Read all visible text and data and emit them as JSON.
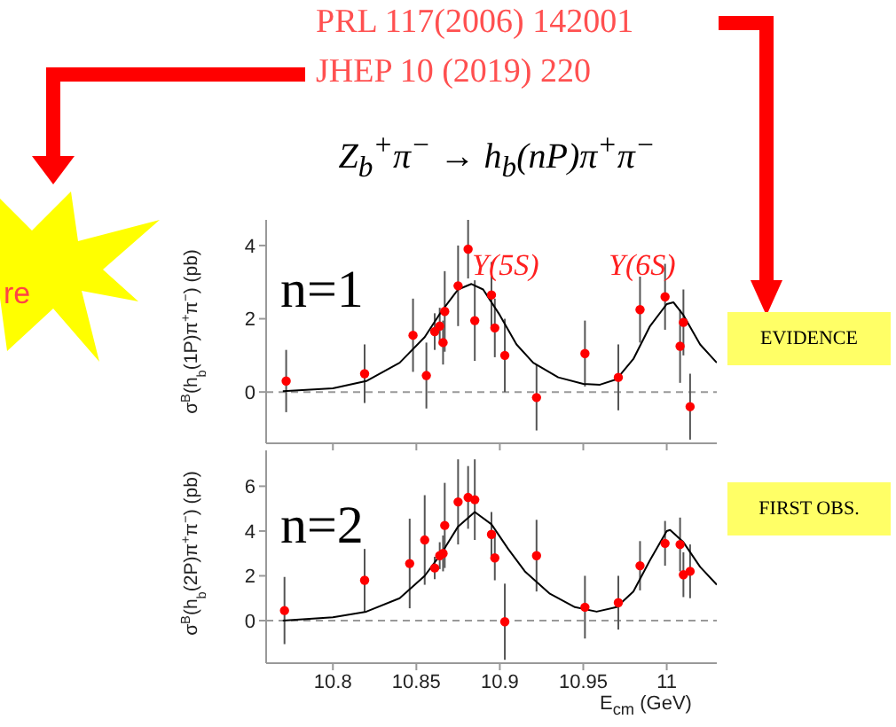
{
  "chart_data": [
    {
      "type": "scatter",
      "title": "Z$_{b}$$^{+}$π$^{−}$ → h$_{b}$(nP)π$^{+}$π$^{−}$",
      "ylabel": "σ$^{B}$(h$_{b}$(1P)π$^{+}$π$^{−}$) (pb)",
      "xlim": [
        10.76,
        11.03
      ],
      "ylim": [
        -1.4,
        4.7
      ],
      "xticks": [
        {
          "value": 10.8,
          "label": null
        },
        {
          "value": 10.85,
          "label": null
        },
        {
          "value": 10.9,
          "label": null
        },
        {
          "value": 10.95,
          "label": null
        },
        {
          "value": 11,
          "label": null
        }
      ],
      "yticks": [
        0,
        2,
        4
      ],
      "tick_labels": "y",
      "ref_lines": [
        {
          "axis": "y",
          "value": 0,
          "line_style": "dashed",
          "color": "#999999"
        }
      ],
      "annotations": [
        "n=1",
        "Υ(5S)",
        "Υ(6S)",
        "EVIDENCE",
        "PRL 117(2006) 142001",
        "JHEP 10 (2019) 220",
        "re"
      ],
      "series": [
        {
          "type": "scatter",
          "marker": "circle",
          "color": "#ff0000",
          "x": [
            10.772,
            10.819,
            10.848,
            10.856,
            10.861,
            10.864,
            10.866,
            10.867,
            10.875,
            10.881,
            10.885,
            10.895,
            10.897,
            10.903,
            10.922,
            10.951,
            10.971,
            10.984,
            10.999,
            11.008,
            11.01,
            11.014
          ],
          "values": [
            0.3,
            0.5,
            1.55,
            0.45,
            1.65,
            1.8,
            1.35,
            2.2,
            2.9,
            3.9,
            1.95,
            2.65,
            1.75,
            1.0,
            -0.15,
            1.05,
            0.4,
            2.25,
            2.6,
            1.25,
            1.9,
            -0.4
          ],
          "errors": [
            0.85,
            0.8,
            1.0,
            0.9,
            0.5,
            0.5,
            0.6,
            1.1,
            1.1,
            0.8,
            1.1,
            0.9,
            0.8,
            1.0,
            0.9,
            0.9,
            0.9,
            0.9,
            0.9,
            1.0,
            0.9,
            0.9
          ]
        },
        {
          "type": "line",
          "color": "#000000",
          "x": [
            10.77,
            10.8,
            10.82,
            10.84,
            10.855,
            10.865,
            10.875,
            10.883,
            10.89,
            10.9,
            10.91,
            10.92,
            10.935,
            10.95,
            10.96,
            10.97,
            10.98,
            10.99,
            11.0,
            11.004,
            11.01,
            11.02,
            11.03
          ],
          "values": [
            0.02,
            0.1,
            0.3,
            0.8,
            1.5,
            2.2,
            2.8,
            2.95,
            2.8,
            2.1,
            1.3,
            0.8,
            0.4,
            0.22,
            0.2,
            0.35,
            0.9,
            1.8,
            2.4,
            2.45,
            2.1,
            1.3,
            0.8
          ]
        }
      ]
    },
    {
      "type": "scatter",
      "ylabel": "σ$^{B}$(h$_{b}$(2P)π$^{+}$π$^{−}$) (pb)",
      "xlabel": "E$_{cm}$ (GeV)",
      "xlim": [
        10.76,
        11.03
      ],
      "ylim": [
        -1.9,
        7.6
      ],
      "xticks": [
        10.8,
        10.85,
        10.9,
        10.95,
        11
      ],
      "yticks": [
        0,
        2,
        4,
        6
      ],
      "ref_lines": [
        {
          "axis": "y",
          "value": 0,
          "line_style": "dashed",
          "color": "#999999"
        }
      ],
      "annotations": [
        "n=2",
        "FIRST OBS."
      ],
      "series": [
        {
          "type": "scatter",
          "marker": "circle",
          "color": "#ff0000",
          "x": [
            10.771,
            10.819,
            10.846,
            10.855,
            10.861,
            10.864,
            10.866,
            10.867,
            10.875,
            10.881,
            10.885,
            10.895,
            10.897,
            10.903,
            10.922,
            10.951,
            10.971,
            10.984,
            10.999,
            11.008,
            11.01,
            11.014
          ],
          "values": [
            0.45,
            1.8,
            2.55,
            3.6,
            2.35,
            2.9,
            3.0,
            4.25,
            5.3,
            5.5,
            5.4,
            3.85,
            2.8,
            -0.05,
            2.9,
            0.6,
            0.8,
            2.45,
            3.45,
            3.4,
            2.05,
            2.2
          ],
          "errors": [
            1.5,
            1.4,
            2.0,
            2.0,
            0.5,
            0.6,
            0.8,
            1.9,
            1.9,
            1.4,
            1.8,
            1.0,
            1.0,
            1.7,
            1.6,
            1.4,
            1.2,
            1.1,
            1.0,
            1.2,
            1.0,
            1.2
          ]
        },
        {
          "type": "line",
          "color": "#000000",
          "x": [
            10.77,
            10.8,
            10.82,
            10.84,
            10.855,
            10.865,
            10.875,
            10.885,
            10.895,
            10.905,
            10.915,
            10.93,
            10.945,
            10.958,
            10.97,
            10.98,
            10.99,
            11.0,
            11.002,
            11.01,
            11.02,
            11.03
          ],
          "values": [
            0,
            0.15,
            0.4,
            1.0,
            2.0,
            3.0,
            4.2,
            4.85,
            4.3,
            3.2,
            2.2,
            1.2,
            0.6,
            0.4,
            0.6,
            1.3,
            2.7,
            4.0,
            4.05,
            3.5,
            2.4,
            1.6
          ]
        }
      ]
    }
  ]
}
